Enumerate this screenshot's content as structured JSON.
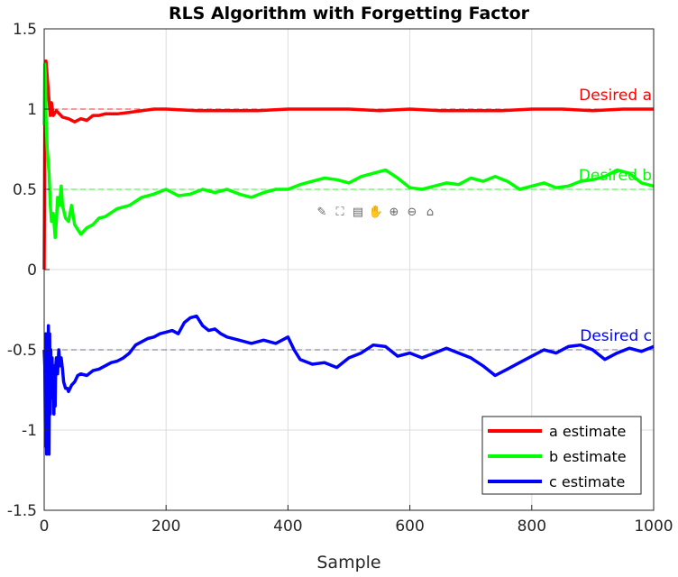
{
  "chart_data": {
    "type": "line",
    "title": "RLS Algorithm with Forgetting Factor",
    "xlabel": "Sample",
    "ylabel": "",
    "xlim": [
      0,
      1000
    ],
    "ylim": [
      -1.5,
      1.5
    ],
    "xticks": [
      0,
      200,
      400,
      600,
      800,
      1000
    ],
    "yticks": [
      -1.5,
      -1,
      -0.5,
      0,
      0.5,
      1,
      1.5
    ],
    "xtick_labels": [
      "0",
      "200",
      "400",
      "600",
      "800",
      "1000"
    ],
    "ytick_labels": [
      "-1.5",
      "-1",
      "-0.5",
      "0",
      "0.5",
      "1",
      "1.5"
    ],
    "grid": true,
    "legend_position": "bottom-right",
    "series": [
      {
        "name": "a estimate",
        "color": "#ff0000",
        "x": [
          0,
          1,
          2,
          3,
          5,
          8,
          10,
          12,
          15,
          20,
          25,
          30,
          40,
          50,
          60,
          70,
          80,
          90,
          100,
          120,
          140,
          160,
          180,
          200,
          250,
          300,
          350,
          400,
          450,
          500,
          550,
          600,
          650,
          700,
          750,
          800,
          850,
          900,
          950,
          1000
        ],
        "y": [
          0.0,
          0.9,
          1.28,
          1.3,
          1.2,
          1.05,
          0.96,
          1.04,
          0.96,
          0.99,
          0.97,
          0.95,
          0.94,
          0.92,
          0.94,
          0.93,
          0.96,
          0.96,
          0.97,
          0.97,
          0.98,
          0.99,
          1.0,
          1.0,
          0.99,
          0.99,
          0.99,
          1.0,
          1.0,
          1.0,
          0.99,
          1.0,
          0.99,
          0.99,
          0.99,
          1.0,
          1.0,
          0.99,
          1.0,
          1.0
        ]
      },
      {
        "name": "b estimate",
        "color": "#00ff00",
        "x": [
          0,
          1,
          2,
          3,
          5,
          8,
          10,
          12,
          15,
          18,
          20,
          22,
          25,
          28,
          30,
          35,
          40,
          45,
          50,
          55,
          60,
          70,
          80,
          90,
          100,
          120,
          140,
          160,
          180,
          200,
          220,
          240,
          260,
          280,
          300,
          320,
          340,
          360,
          380,
          400,
          420,
          440,
          460,
          480,
          500,
          520,
          540,
          560,
          580,
          600,
          620,
          640,
          660,
          680,
          700,
          720,
          740,
          760,
          780,
          800,
          820,
          840,
          860,
          880,
          900,
          920,
          940,
          960,
          980,
          1000
        ],
        "y": [
          0.9,
          1.28,
          1.2,
          0.95,
          0.75,
          0.6,
          0.4,
          0.3,
          0.35,
          0.2,
          0.3,
          0.45,
          0.4,
          0.52,
          0.4,
          0.32,
          0.3,
          0.4,
          0.28,
          0.25,
          0.22,
          0.26,
          0.28,
          0.32,
          0.33,
          0.38,
          0.4,
          0.45,
          0.47,
          0.5,
          0.46,
          0.47,
          0.5,
          0.48,
          0.5,
          0.47,
          0.45,
          0.48,
          0.5,
          0.5,
          0.53,
          0.55,
          0.57,
          0.56,
          0.54,
          0.58,
          0.6,
          0.62,
          0.57,
          0.51,
          0.5,
          0.52,
          0.54,
          0.53,
          0.57,
          0.55,
          0.58,
          0.55,
          0.5,
          0.52,
          0.54,
          0.51,
          0.52,
          0.55,
          0.56,
          0.58,
          0.62,
          0.6,
          0.54,
          0.52
        ]
      },
      {
        "name": "c estimate",
        "color": "#0000ff",
        "x": [
          0,
          1,
          2,
          3,
          4,
          5,
          6,
          7,
          8,
          9,
          10,
          11,
          12,
          13,
          14,
          15,
          16,
          17,
          18,
          19,
          20,
          22,
          24,
          26,
          28,
          30,
          32,
          35,
          38,
          40,
          45,
          50,
          55,
          60,
          70,
          80,
          90,
          100,
          110,
          120,
          130,
          140,
          150,
          160,
          170,
          180,
          190,
          200,
          210,
          220,
          230,
          240,
          250,
          260,
          270,
          280,
          290,
          300,
          320,
          340,
          360,
          380,
          400,
          410,
          420,
          440,
          460,
          480,
          500,
          520,
          540,
          560,
          580,
          600,
          620,
          640,
          660,
          680,
          700,
          720,
          740,
          760,
          780,
          800,
          820,
          840,
          860,
          880,
          900,
          920,
          940,
          960,
          980,
          1000
        ],
        "y": [
          -0.5,
          -0.6,
          -1.1,
          -0.4,
          -1.15,
          -0.45,
          -1.1,
          -0.35,
          -1.15,
          -0.4,
          -0.9,
          -0.5,
          -0.8,
          -0.55,
          -0.75,
          -0.6,
          -0.9,
          -0.65,
          -0.85,
          -0.6,
          -0.55,
          -0.65,
          -0.5,
          -0.6,
          -0.55,
          -0.62,
          -0.7,
          -0.74,
          -0.74,
          -0.76,
          -0.72,
          -0.7,
          -0.66,
          -0.65,
          -0.66,
          -0.63,
          -0.62,
          -0.6,
          -0.58,
          -0.57,
          -0.55,
          -0.52,
          -0.47,
          -0.45,
          -0.43,
          -0.42,
          -0.4,
          -0.39,
          -0.38,
          -0.4,
          -0.33,
          -0.3,
          -0.29,
          -0.35,
          -0.38,
          -0.37,
          -0.4,
          -0.42,
          -0.44,
          -0.46,
          -0.44,
          -0.46,
          -0.42,
          -0.5,
          -0.56,
          -0.59,
          -0.58,
          -0.61,
          -0.55,
          -0.52,
          -0.47,
          -0.48,
          -0.54,
          -0.52,
          -0.55,
          -0.52,
          -0.49,
          -0.52,
          -0.55,
          -0.6,
          -0.66,
          -0.62,
          -0.58,
          -0.54,
          -0.5,
          -0.52,
          -0.48,
          -0.47,
          -0.5,
          -0.56,
          -0.52,
          -0.49,
          -0.51,
          -0.48
        ]
      }
    ],
    "reference_lines": [
      {
        "label": "Desired a",
        "y": 1.0,
        "color": "#ff0000",
        "style": "dashed"
      },
      {
        "label": "Desired b",
        "y": 0.5,
        "color": "#00ff00",
        "style": "dashed"
      },
      {
        "label": "Desired c",
        "y": -0.5,
        "color": "#0000ff",
        "style": "dashed"
      }
    ]
  },
  "toolbar": {
    "buttons": [
      {
        "name": "brush-icon",
        "glyph": "✎"
      },
      {
        "name": "paint-icon",
        "glyph": "⛶"
      },
      {
        "name": "datatip-icon",
        "glyph": "▤"
      },
      {
        "name": "pan-icon",
        "glyph": "✋"
      },
      {
        "name": "zoom-in-icon",
        "glyph": "⊕"
      },
      {
        "name": "zoom-out-icon",
        "glyph": "⊖"
      },
      {
        "name": "home-icon",
        "glyph": "⌂"
      }
    ]
  }
}
